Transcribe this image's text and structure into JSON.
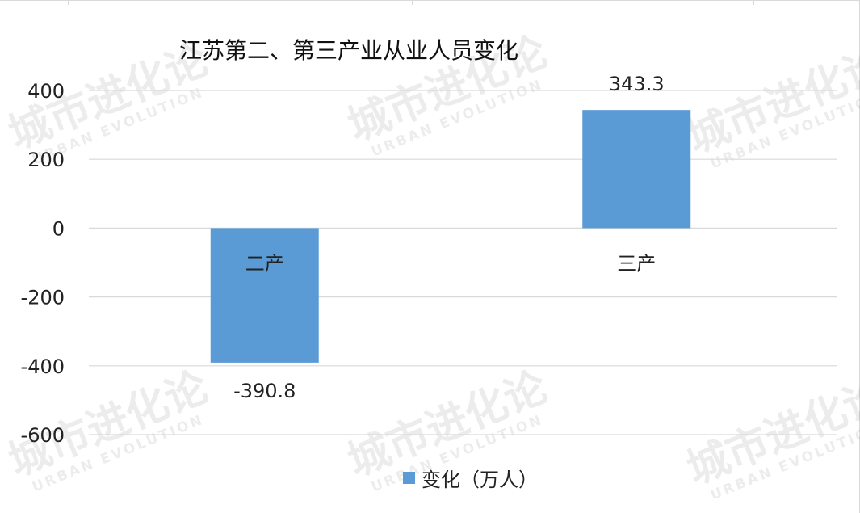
{
  "chart_data": {
    "type": "bar",
    "title": "江苏第二、第三产业从业人员变化",
    "categories": [
      "二产",
      "三产"
    ],
    "series": [
      {
        "name": "变化（万人）",
        "values": [
          -390.8,
          343.3
        ],
        "color": "#5b9bd5"
      }
    ],
    "data_labels": [
      "-390.8",
      "343.3"
    ],
    "ylim": [
      -600,
      400
    ],
    "yticks": [
      400,
      200,
      0,
      -200,
      -400,
      -600
    ],
    "ytick_labels": [
      "400",
      "200",
      "0",
      "-200",
      "-400",
      "-600"
    ],
    "grid": true,
    "legend_position": "bottom"
  },
  "watermark": {
    "text_cn": "城市进化论",
    "text_en": "URBAN EVOLUTION"
  }
}
